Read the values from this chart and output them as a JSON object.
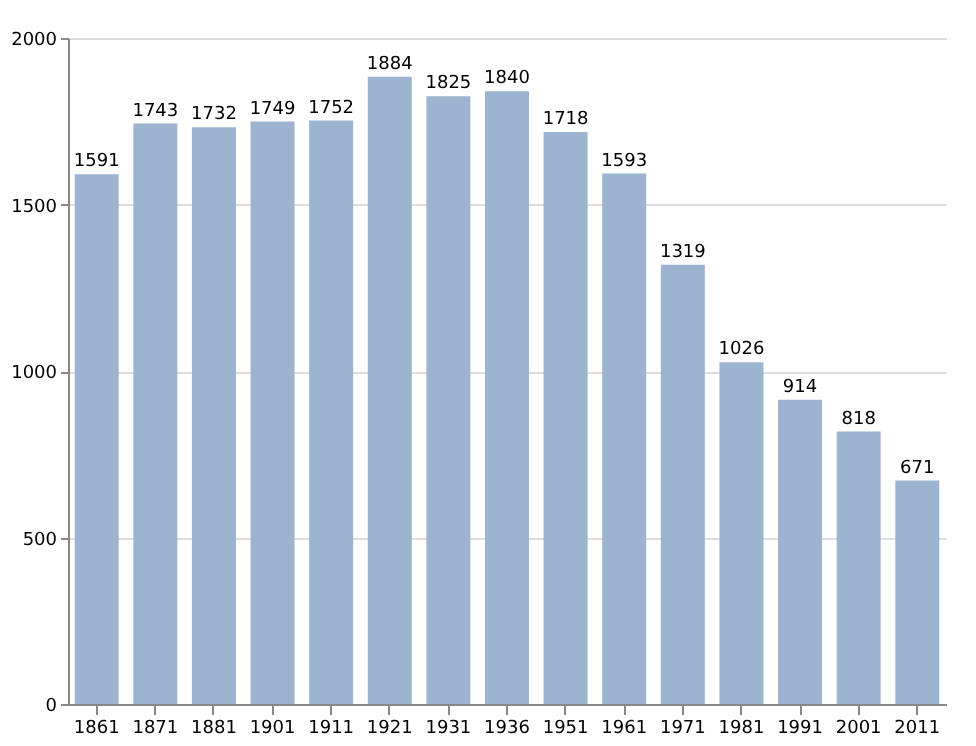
{
  "chart_data": {
    "type": "bar",
    "categories": [
      "1861",
      "1871",
      "1881",
      "1901",
      "1911",
      "1921",
      "1931",
      "1936",
      "1951",
      "1961",
      "1971",
      "1981",
      "1991",
      "2001",
      "2011"
    ],
    "values": [
      1591,
      1743,
      1732,
      1749,
      1752,
      1884,
      1825,
      1840,
      1718,
      1593,
      1319,
      1026,
      914,
      818,
      671
    ],
    "color": "#9db4d0",
    "ylim": [
      0,
      2000
    ],
    "yticks": [
      0,
      500,
      1000,
      1500,
      2000
    ],
    "grid": "y",
    "data_labels": true
  }
}
